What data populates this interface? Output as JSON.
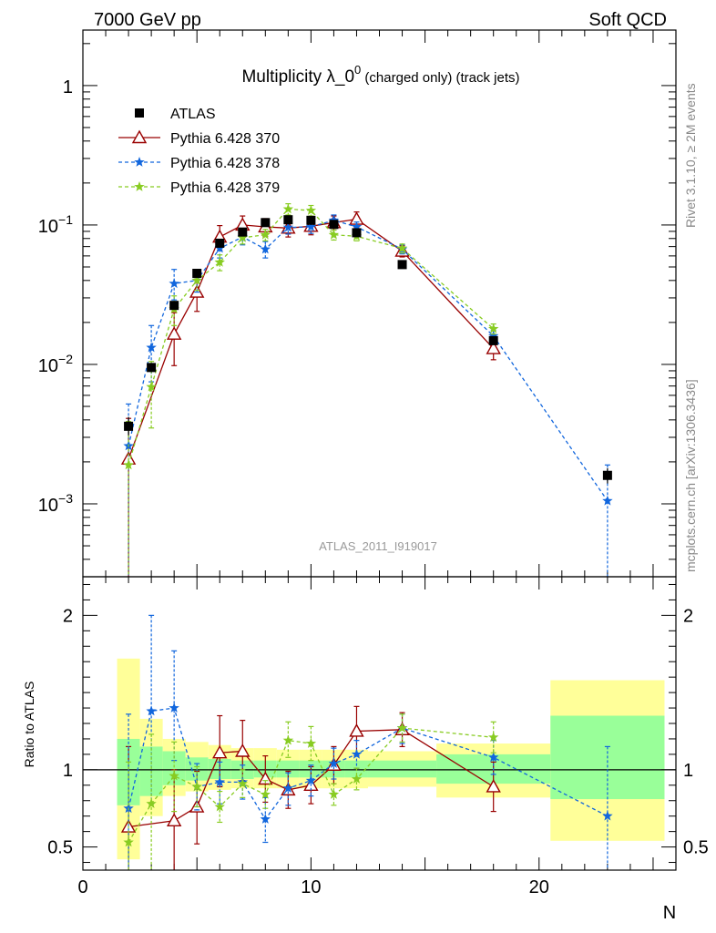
{
  "header": {
    "left": "7000 GeV pp",
    "right": "Soft QCD"
  },
  "side_labels": {
    "rivet": "Rivet 3.1.10, ≥ 2M events",
    "mcplots": "mcplots.cern.ch [arXiv:1306.3436]"
  },
  "colors": {
    "atlas": "#000000",
    "p370": "#990000",
    "p378": "#1166dd",
    "p379": "#88cc22",
    "band_yellow": "#ffff99",
    "band_green": "#99ff99"
  },
  "chart_data": [
    {
      "type": "scatter",
      "title_main": "Multiplicity λ_0",
      "title_sup": "0",
      "title_small": " (charged only) (track jets)",
      "watermark": "ATLAS_2011_I919017",
      "yscale": "log",
      "xlim": [
        0,
        26
      ],
      "ylim": [
        0.0003,
        2.5
      ],
      "y_ticks": [
        {
          "value": 0.001,
          "base": "10",
          "exp": "−3"
        },
        {
          "value": 0.01,
          "base": "10",
          "exp": "−2"
        },
        {
          "value": 0.1,
          "base": "10",
          "exp": "−1"
        },
        {
          "value": 1,
          "base": "1",
          "exp": ""
        }
      ],
      "legend": [
        "ATLAS",
        "Pythia 6.428 370",
        "Pythia 6.428 378",
        "Pythia 6.428 379"
      ],
      "legend_position": "top-left",
      "series": [
        {
          "name": "ATLAS",
          "points": [
            {
              "x": 2,
              "y": 0.0036,
              "lo": 0.0031,
              "hi": 0.0042
            },
            {
              "x": 3,
              "y": 0.0095,
              "lo": 0.0088,
              "hi": 0.0102
            },
            {
              "x": 4,
              "y": 0.0265,
              "lo": 0.0248,
              "hi": 0.0283
            },
            {
              "x": 5,
              "y": 0.045,
              "lo": 0.042,
              "hi": 0.048
            },
            {
              "x": 6,
              "y": 0.074,
              "lo": 0.07,
              "hi": 0.078
            },
            {
              "x": 7,
              "y": 0.089,
              "lo": 0.085,
              "hi": 0.093
            },
            {
              "x": 8,
              "y": 0.104,
              "lo": 0.1,
              "hi": 0.108
            },
            {
              "x": 9,
              "y": 0.109,
              "lo": 0.105,
              "hi": 0.113
            },
            {
              "x": 10,
              "y": 0.108,
              "lo": 0.104,
              "hi": 0.112
            },
            {
              "x": 11,
              "y": 0.101,
              "lo": 0.097,
              "hi": 0.105
            },
            {
              "x": 12,
              "y": 0.088,
              "lo": 0.084,
              "hi": 0.092
            },
            {
              "x": 14,
              "y": 0.052,
              "lo": 0.049,
              "hi": 0.055
            },
            {
              "x": 18,
              "y": 0.0148,
              "lo": 0.0138,
              "hi": 0.0158
            },
            {
              "x": 23,
              "y": 0.0016,
              "lo": 0.0014,
              "hi": 0.0018
            }
          ]
        },
        {
          "name": "Pythia 6.428 370",
          "points": [
            {
              "x": 2,
              "y": 0.0021,
              "lo": 0.0002,
              "hi": 0.0041
            },
            {
              "x": 4,
              "y": 0.0165,
              "lo": 0.0098,
              "hi": 0.0235
            },
            {
              "x": 5,
              "y": 0.033,
              "lo": 0.024,
              "hi": 0.042
            },
            {
              "x": 6,
              "y": 0.082,
              "lo": 0.066,
              "hi": 0.099
            },
            {
              "x": 7,
              "y": 0.1,
              "lo": 0.084,
              "hi": 0.116
            },
            {
              "x": 8,
              "y": 0.097,
              "lo": 0.083,
              "hi": 0.111
            },
            {
              "x": 9,
              "y": 0.095,
              "lo": 0.082,
              "hi": 0.108
            },
            {
              "x": 10,
              "y": 0.098,
              "lo": 0.085,
              "hi": 0.111
            },
            {
              "x": 11,
              "y": 0.104,
              "lo": 0.092,
              "hi": 0.116
            },
            {
              "x": 12,
              "y": 0.11,
              "lo": 0.096,
              "hi": 0.124
            },
            {
              "x": 14,
              "y": 0.065,
              "lo": 0.059,
              "hi": 0.071
            },
            {
              "x": 18,
              "y": 0.013,
              "lo": 0.0108,
              "hi": 0.0152
            }
          ]
        },
        {
          "name": "Pythia 6.428 378",
          "points": [
            {
              "x": 2,
              "y": 0.0026,
              "lo": 0.0002,
              "hi": 0.0052
            },
            {
              "x": 3,
              "y": 0.0132,
              "lo": 0.0075,
              "hi": 0.019
            },
            {
              "x": 4,
              "y": 0.038,
              "lo": 0.029,
              "hi": 0.048
            },
            {
              "x": 5,
              "y": 0.04,
              "lo": 0.033,
              "hi": 0.047
            },
            {
              "x": 6,
              "y": 0.068,
              "lo": 0.058,
              "hi": 0.078
            },
            {
              "x": 7,
              "y": 0.082,
              "lo": 0.072,
              "hi": 0.092
            },
            {
              "x": 8,
              "y": 0.067,
              "lo": 0.058,
              "hi": 0.076
            },
            {
              "x": 9,
              "y": 0.096,
              "lo": 0.086,
              "hi": 0.106
            },
            {
              "x": 10,
              "y": 0.097,
              "lo": 0.087,
              "hi": 0.107
            },
            {
              "x": 11,
              "y": 0.108,
              "lo": 0.098,
              "hi": 0.118
            },
            {
              "x": 12,
              "y": 0.097,
              "lo": 0.089,
              "hi": 0.105
            },
            {
              "x": 14,
              "y": 0.067,
              "lo": 0.062,
              "hi": 0.072
            },
            {
              "x": 18,
              "y": 0.016,
              "lo": 0.0145,
              "hi": 0.0175
            },
            {
              "x": 23,
              "y": 0.00105,
              "lo": 0.0002,
              "hi": 0.0019
            }
          ]
        },
        {
          "name": "Pythia 6.428 379",
          "points": [
            {
              "x": 2,
              "y": 0.0019,
              "lo": 0.0002,
              "hi": 0.0039
            },
            {
              "x": 3,
              "y": 0.0069,
              "lo": 0.0035,
              "hi": 0.0105
            },
            {
              "x": 4,
              "y": 0.025,
              "lo": 0.019,
              "hi": 0.031
            },
            {
              "x": 5,
              "y": 0.04,
              "lo": 0.034,
              "hi": 0.046
            },
            {
              "x": 6,
              "y": 0.054,
              "lo": 0.047,
              "hi": 0.061
            },
            {
              "x": 7,
              "y": 0.081,
              "lo": 0.073,
              "hi": 0.089
            },
            {
              "x": 8,
              "y": 0.085,
              "lo": 0.077,
              "hi": 0.093
            },
            {
              "x": 9,
              "y": 0.13,
              "lo": 0.118,
              "hi": 0.142
            },
            {
              "x": 10,
              "y": 0.127,
              "lo": 0.116,
              "hi": 0.138
            },
            {
              "x": 11,
              "y": 0.085,
              "lo": 0.078,
              "hi": 0.092
            },
            {
              "x": 12,
              "y": 0.083,
              "lo": 0.077,
              "hi": 0.089
            },
            {
              "x": 14,
              "y": 0.068,
              "lo": 0.063,
              "hi": 0.073
            },
            {
              "x": 18,
              "y": 0.018,
              "lo": 0.0165,
              "hi": 0.0195
            }
          ]
        }
      ]
    },
    {
      "type": "scatter",
      "ylabel": "Ratio to ATLAS",
      "xlabel": "N",
      "xlim": [
        0,
        26
      ],
      "ylim": [
        0.35,
        2.25
      ],
      "x_ticks": [
        0,
        10,
        20
      ],
      "y_ticks": [
        0.5,
        1,
        2
      ],
      "reference_line": 1,
      "bands": [
        {
          "x0": 1.5,
          "x1": 2.5,
          "y_lo": 0.42,
          "y_hi": 1.72,
          "g_lo": 0.77,
          "g_hi": 1.2
        },
        {
          "x0": 2.5,
          "x1": 3.5,
          "y_lo": 0.7,
          "y_hi": 1.33,
          "g_lo": 0.83,
          "g_hi": 1.15
        },
        {
          "x0": 3.5,
          "x1": 4.5,
          "y_lo": 0.83,
          "y_hi": 1.2,
          "g_lo": 0.9,
          "g_hi": 1.12
        },
        {
          "x0": 4.5,
          "x1": 5.5,
          "y_lo": 0.86,
          "y_hi": 1.18,
          "g_lo": 0.93,
          "g_hi": 1.08
        },
        {
          "x0": 5.5,
          "x1": 6.5,
          "y_lo": 0.87,
          "y_hi": 1.16,
          "g_lo": 0.94,
          "g_hi": 1.07
        },
        {
          "x0": 6.5,
          "x1": 7.5,
          "y_lo": 0.88,
          "y_hi": 1.14,
          "g_lo": 0.94,
          "g_hi": 1.06
        },
        {
          "x0": 7.5,
          "x1": 8.5,
          "y_lo": 0.88,
          "y_hi": 1.14,
          "g_lo": 0.95,
          "g_hi": 1.06
        },
        {
          "x0": 8.5,
          "x1": 9.5,
          "y_lo": 0.88,
          "y_hi": 1.13,
          "g_lo": 0.95,
          "g_hi": 1.06
        },
        {
          "x0": 9.5,
          "x1": 10.5,
          "y_lo": 0.88,
          "y_hi": 1.13,
          "g_lo": 0.95,
          "g_hi": 1.06
        },
        {
          "x0": 10.5,
          "x1": 11.5,
          "y_lo": 0.88,
          "y_hi": 1.13,
          "g_lo": 0.95,
          "g_hi": 1.06
        },
        {
          "x0": 11.5,
          "x1": 12.5,
          "y_lo": 0.88,
          "y_hi": 1.13,
          "g_lo": 0.95,
          "g_hi": 1.06
        },
        {
          "x0": 12.5,
          "x1": 15.5,
          "y_lo": 0.89,
          "y_hi": 1.12,
          "g_lo": 0.95,
          "g_hi": 1.06
        },
        {
          "x0": 15.5,
          "x1": 20.5,
          "y_lo": 0.82,
          "y_hi": 1.17,
          "g_lo": 0.91,
          "g_hi": 1.1
        },
        {
          "x0": 20.5,
          "x1": 25.5,
          "y_lo": 0.54,
          "y_hi": 1.58,
          "g_lo": 0.81,
          "g_hi": 1.35
        }
      ],
      "series": [
        {
          "name": "Pythia 6.428 370",
          "points": [
            {
              "x": 2,
              "y": 0.63,
              "lo": 0.3,
              "hi": 1.15
            },
            {
              "x": 4,
              "y": 0.67,
              "lo": 0.3,
              "hi": 1.0
            },
            {
              "x": 5,
              "y": 0.76,
              "lo": 0.52,
              "hi": 0.99
            },
            {
              "x": 6,
              "y": 1.11,
              "lo": 0.89,
              "hi": 1.35
            },
            {
              "x": 7,
              "y": 1.12,
              "lo": 0.93,
              "hi": 1.32
            },
            {
              "x": 8,
              "y": 0.94,
              "lo": 0.79,
              "hi": 1.09
            },
            {
              "x": 9,
              "y": 0.87,
              "lo": 0.75,
              "hi": 0.99
            },
            {
              "x": 10,
              "y": 0.9,
              "lo": 0.78,
              "hi": 1.02
            },
            {
              "x": 11,
              "y": 1.03,
              "lo": 0.91,
              "hi": 1.15
            },
            {
              "x": 12,
              "y": 1.25,
              "lo": 1.09,
              "hi": 1.41
            },
            {
              "x": 14,
              "y": 1.26,
              "lo": 1.15,
              "hi": 1.37
            },
            {
              "x": 18,
              "y": 0.89,
              "lo": 0.73,
              "hi": 1.05
            }
          ]
        },
        {
          "name": "Pythia 6.428 378",
          "points": [
            {
              "x": 2,
              "y": 0.75,
              "lo": 0.3,
              "hi": 1.36
            },
            {
              "x": 3,
              "y": 1.38,
              "lo": 0.78,
              "hi": 2.0
            },
            {
              "x": 4,
              "y": 1.4,
              "lo": 1.06,
              "hi": 1.77
            },
            {
              "x": 5,
              "y": 0.89,
              "lo": 0.74,
              "hi": 1.04
            },
            {
              "x": 6,
              "y": 0.92,
              "lo": 0.78,
              "hi": 1.05
            },
            {
              "x": 7,
              "y": 0.92,
              "lo": 0.81,
              "hi": 1.03
            },
            {
              "x": 8,
              "y": 0.68,
              "lo": 0.53,
              "hi": 0.82
            },
            {
              "x": 9,
              "y": 0.88,
              "lo": 0.77,
              "hi": 0.98
            },
            {
              "x": 10,
              "y": 0.93,
              "lo": 0.83,
              "hi": 1.03
            },
            {
              "x": 11,
              "y": 1.04,
              "lo": 0.94,
              "hi": 1.14
            },
            {
              "x": 12,
              "y": 1.1,
              "lo": 1.01,
              "hi": 1.19
            },
            {
              "x": 14,
              "y": 1.27,
              "lo": 1.17,
              "hi": 1.36
            },
            {
              "x": 18,
              "y": 1.08,
              "lo": 0.97,
              "hi": 1.19
            },
            {
              "x": 23,
              "y": 0.7,
              "lo": 0.3,
              "hi": 1.15
            }
          ]
        },
        {
          "name": "Pythia 6.428 379",
          "points": [
            {
              "x": 2,
              "y": 0.53,
              "lo": 0.3,
              "hi": 1.05
            },
            {
              "x": 3,
              "y": 0.78,
              "lo": 0.3,
              "hi": 1.23
            },
            {
              "x": 4,
              "y": 0.96,
              "lo": 0.73,
              "hi": 1.18
            },
            {
              "x": 5,
              "y": 0.89,
              "lo": 0.76,
              "hi": 1.02
            },
            {
              "x": 6,
              "y": 0.76,
              "lo": 0.66,
              "hi": 0.86
            },
            {
              "x": 7,
              "y": 0.91,
              "lo": 0.82,
              "hi": 1.0
            },
            {
              "x": 8,
              "y": 0.84,
              "lo": 0.75,
              "hi": 0.93
            },
            {
              "x": 9,
              "y": 1.19,
              "lo": 1.08,
              "hi": 1.31
            },
            {
              "x": 10,
              "y": 1.17,
              "lo": 1.06,
              "hi": 1.28
            },
            {
              "x": 11,
              "y": 0.84,
              "lo": 0.77,
              "hi": 0.91
            },
            {
              "x": 12,
              "y": 0.94,
              "lo": 0.87,
              "hi": 1.01
            },
            {
              "x": 14,
              "y": 1.27,
              "lo": 1.18,
              "hi": 1.36
            },
            {
              "x": 18,
              "y": 1.21,
              "lo": 1.11,
              "hi": 1.31
            }
          ]
        }
      ]
    }
  ]
}
